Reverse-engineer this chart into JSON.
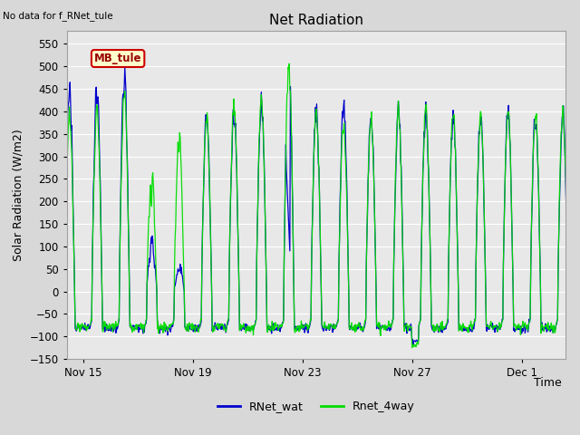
{
  "title": "Net Radiation",
  "corner_text": "No data for f_RNet_tule",
  "ylabel": "Solar Radiation (W/m2)",
  "xlabel": "Time",
  "ylim": [
    -150,
    580
  ],
  "yticks": [
    -150,
    -100,
    -50,
    0,
    50,
    100,
    150,
    200,
    250,
    300,
    350,
    400,
    450,
    500,
    550
  ],
  "xlim_start": 14.4,
  "xlim_end": 32.6,
  "xtick_labels": [
    "Nov 15",
    "Nov 19",
    "Nov 23",
    "Nov 27",
    "Dec 1"
  ],
  "xtick_positions": [
    15,
    19,
    23,
    27,
    31
  ],
  "legend_entries": [
    "RNet_wat",
    "Rnet_4way"
  ],
  "blue_color": "#0000cc",
  "green_color": "#00dd00",
  "fig_bg_color": "#d8d8d8",
  "plot_bg_color": "#e8e8e8",
  "grid_color": "#ffffff",
  "annotation_box_text": "MB_tule",
  "annotation_box_bg": "#ffffcc",
  "annotation_box_border": "#cc0000",
  "title_fontsize": 11,
  "label_fontsize": 9,
  "tick_fontsize": 8.5,
  "blue_peaks": {
    "14": 477,
    "15": 483,
    "16": 511,
    "17": 204,
    "18": 108,
    "19": 410,
    "20": 430,
    "21": 456,
    "22": 531,
    "23": 425,
    "24": 440,
    "25": 412,
    "26": 429,
    "27": 430,
    "28": 425,
    "29": 420,
    "30": 422,
    "31": 422
  },
  "green_peaks": {
    "14": 410,
    "15": 416,
    "16": 455,
    "17": 320,
    "18": 400,
    "19": 408,
    "20": 428,
    "21": 450,
    "22": 525,
    "23": 415,
    "24": 386,
    "25": 407,
    "26": 424,
    "27": 422,
    "28": 418,
    "29": 415,
    "30": 418,
    "31": 418
  },
  "night_base_blue": -82,
  "night_base_green": -79
}
